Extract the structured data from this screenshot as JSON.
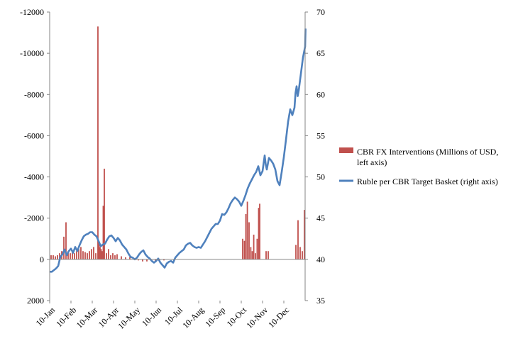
{
  "chart_data": {
    "type": "bar+line",
    "left_axis": {
      "ylim": [
        -12000,
        2000
      ],
      "ticks": [
        "-12000",
        "-10000",
        "-8000",
        "-6000",
        "-4000",
        "-2000",
        "0",
        "2000"
      ],
      "inverted": true
    },
    "right_axis": {
      "ylim": [
        35,
        70
      ],
      "ticks": [
        "70",
        "65",
        "60",
        "55",
        "50",
        "45",
        "40",
        "35"
      ]
    },
    "x_axis": {
      "categories": [
        "10-Jan",
        "10-Feb",
        "10-Mar",
        "10-Apr",
        "10-May",
        "10-Jun",
        "10-Jul",
        "10-Aug",
        "10-Sep",
        "10-Oct",
        "10-Nov",
        "10-Dec"
      ],
      "label_rotation": -45
    },
    "grid": false,
    "legend_position": "right",
    "series": [
      {
        "name": "CBR FX Interventions (Millions of USD, left axis)",
        "type": "bar",
        "axis": "left",
        "color": "#c0504d",
        "x": [
          0.0,
          0.1,
          0.2,
          0.3,
          0.4,
          0.5,
          0.6,
          0.7,
          0.8,
          0.9,
          1.0,
          1.1,
          1.2,
          1.3,
          1.4,
          1.5,
          1.6,
          1.7,
          1.8,
          1.9,
          2.0,
          2.1,
          2.2,
          2.25,
          2.3,
          2.35,
          2.4,
          2.45,
          2.5,
          2.6,
          2.7,
          2.8,
          2.9,
          3.0,
          3.1,
          3.3,
          3.5,
          3.7,
          3.9,
          4.0,
          4.1,
          4.3,
          4.5,
          4.7,
          4.9,
          5.1,
          5.3,
          9.0,
          9.08,
          9.15,
          9.22,
          9.3,
          9.38,
          9.45,
          9.52,
          9.6,
          9.68,
          9.75,
          9.8,
          10.1,
          10.2,
          11.5,
          11.6,
          11.7,
          11.8,
          11.9
        ],
        "values": [
          -200,
          -200,
          -150,
          -200,
          -300,
          -400,
          -1100,
          -1800,
          -400,
          -300,
          -350,
          -300,
          -400,
          -500,
          -600,
          -400,
          -350,
          -300,
          -400,
          -500,
          -600,
          -300,
          -11300,
          -800,
          -600,
          -500,
          -400,
          -2600,
          -4400,
          -300,
          -500,
          -200,
          -300,
          -200,
          -250,
          -150,
          -100,
          -100,
          -50,
          -50,
          50,
          100,
          100,
          50,
          100,
          100,
          50,
          -1000,
          -900,
          -2200,
          -2800,
          -1800,
          -600,
          -400,
          -1200,
          -300,
          -1000,
          -2500,
          -2700,
          -400,
          -400,
          -700,
          -1900,
          -600,
          -400,
          -2400
        ]
      },
      {
        "name": "Ruble per CBR Target Basket (right axis)",
        "type": "line",
        "axis": "right",
        "color": "#4f81bd",
        "x": [
          0.0,
          0.1,
          0.2,
          0.3,
          0.4,
          0.5,
          0.6,
          0.7,
          0.8,
          0.9,
          1.0,
          1.1,
          1.2,
          1.3,
          1.4,
          1.5,
          1.6,
          1.7,
          1.8,
          1.9,
          2.0,
          2.1,
          2.2,
          2.3,
          2.4,
          2.5,
          2.6,
          2.7,
          2.8,
          2.9,
          3.0,
          3.1,
          3.2,
          3.3,
          3.4,
          3.5,
          3.6,
          3.7,
          3.8,
          3.9,
          4.0,
          4.1,
          4.2,
          4.3,
          4.4,
          4.5,
          4.6,
          4.7,
          4.8,
          4.9,
          5.0,
          5.1,
          5.2,
          5.3,
          5.4,
          5.5,
          5.6,
          5.7,
          5.8,
          5.9,
          6.0,
          6.1,
          6.2,
          6.3,
          6.4,
          6.5,
          6.6,
          6.7,
          6.8,
          6.9,
          7.0,
          7.1,
          7.2,
          7.3,
          7.4,
          7.5,
          7.6,
          7.7,
          7.8,
          7.9,
          8.0,
          8.1,
          8.2,
          8.3,
          8.4,
          8.5,
          8.6,
          8.7,
          8.8,
          8.9,
          9.0,
          9.1,
          9.2,
          9.3,
          9.4,
          9.5,
          9.6,
          9.7,
          9.8,
          9.9,
          10.0,
          10.1,
          10.15,
          10.2,
          10.3,
          10.4,
          10.5,
          10.6,
          10.7,
          10.8,
          10.9,
          11.0,
          11.1,
          11.2,
          11.3,
          11.4,
          11.5,
          11.55,
          11.6,
          11.65,
          11.7,
          11.8,
          11.9,
          12.0,
          12.02
        ],
        "values": [
          38.5,
          38.5,
          38.7,
          38.9,
          39.2,
          40.3,
          40.6,
          41.2,
          40.5,
          41.0,
          41.3,
          40.8,
          41.5,
          41.0,
          41.7,
          42.3,
          42.8,
          43.0,
          43.1,
          43.3,
          43.3,
          43.0,
          42.8,
          42.2,
          41.6,
          41.8,
          41.9,
          42.4,
          42.8,
          42.9,
          42.6,
          42.2,
          42.6,
          42.3,
          41.8,
          41.5,
          41.2,
          40.7,
          40.3,
          40.2,
          40.0,
          40.2,
          40.6,
          40.9,
          41.1,
          40.6,
          40.3,
          40.1,
          39.8,
          39.6,
          39.8,
          40.1,
          39.6,
          39.3,
          39.0,
          39.5,
          39.7,
          39.8,
          39.6,
          40.2,
          40.5,
          40.8,
          41.0,
          41.2,
          41.7,
          41.9,
          42.0,
          41.7,
          41.5,
          41.4,
          41.5,
          41.4,
          41.8,
          42.2,
          42.7,
          43.2,
          43.7,
          44.0,
          44.3,
          44.3,
          44.7,
          45.5,
          45.4,
          45.7,
          46.2,
          46.8,
          47.2,
          47.5,
          47.3,
          47.0,
          46.5,
          47.1,
          47.8,
          48.6,
          49.2,
          49.7,
          50.2,
          50.6,
          51.3,
          50.2,
          50.7,
          52.6,
          51.5,
          50.9,
          52.3,
          52.0,
          51.6,
          50.9,
          49.5,
          49.0,
          50.6,
          52.4,
          54.5,
          56.7,
          58.2,
          57.5,
          58.4,
          60.2,
          61.0,
          59.8,
          60.5,
          62.5,
          64.5,
          65.8,
          68.0
        ]
      }
    ]
  }
}
